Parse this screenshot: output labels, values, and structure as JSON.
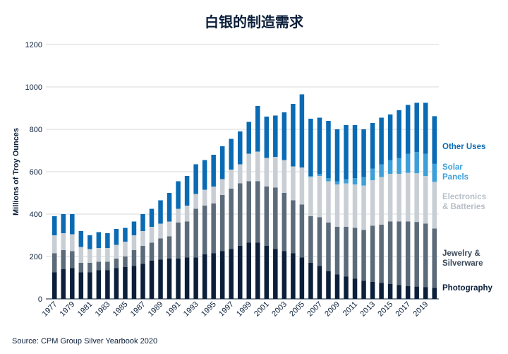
{
  "chart_data": {
    "type": "bar",
    "stacked": true,
    "title": "白银的制造需求",
    "ylabel": "Millions of Troy Ounces",
    "xlabel": "",
    "ylim": [
      0,
      1200
    ],
    "yticks": [
      "0",
      "200",
      "400",
      "600",
      "800",
      "1000",
      "1200"
    ],
    "grid": true,
    "legend_position": "right",
    "source": "Source: CPM Group Silver Yearbook 2020",
    "categories": [
      "1977",
      "1978",
      "1979",
      "1980",
      "1981",
      "1982",
      "1983",
      "1984",
      "1985",
      "1986",
      "1987",
      "1988",
      "1989",
      "1990",
      "1991",
      "1992",
      "1993",
      "1994",
      "1995",
      "1996",
      "1997",
      "1998",
      "1999",
      "2000",
      "2001",
      "2002",
      "2003",
      "2004",
      "2005",
      "2006",
      "2007",
      "2008",
      "2009",
      "2010",
      "2011",
      "2012",
      "2013",
      "2014",
      "2015",
      "2016",
      "2017",
      "2018",
      "2019",
      "2020"
    ],
    "xtick_labels": [
      "1977",
      "1979",
      "1981",
      "1983",
      "1985",
      "1987",
      "1989",
      "1991",
      "1993",
      "1995",
      "1997",
      "1999",
      "2001",
      "2003",
      "2005",
      "2007",
      "2009",
      "2011",
      "2013",
      "2015",
      "2017",
      "2019"
    ],
    "series": [
      {
        "name": "Photography",
        "color": "#0b1f3a",
        "values": [
          125,
          140,
          145,
          125,
          125,
          135,
          135,
          145,
          150,
          155,
          165,
          180,
          185,
          190,
          190,
          195,
          195,
          210,
          215,
          225,
          235,
          250,
          265,
          265,
          250,
          235,
          225,
          215,
          195,
          170,
          155,
          130,
          115,
          105,
          95,
          85,
          80,
          75,
          70,
          65,
          60,
          58,
          55,
          52
        ]
      },
      {
        "name": "Jewelry & Silverware",
        "color": "#5c6b7a",
        "values": [
          90,
          90,
          80,
          45,
          45,
          40,
          40,
          45,
          50,
          75,
          85,
          85,
          100,
          105,
          170,
          170,
          230,
          230,
          235,
          265,
          285,
          295,
          290,
          290,
          280,
          290,
          275,
          250,
          250,
          220,
          230,
          230,
          225,
          235,
          240,
          240,
          265,
          275,
          295,
          300,
          305,
          305,
          300,
          280
        ]
      },
      {
        "name": "Electronics & Batteries",
        "color": "#c8ced4",
        "values": [
          85,
          80,
          80,
          75,
          65,
          65,
          65,
          65,
          70,
          70,
          70,
          75,
          70,
          70,
          65,
          75,
          70,
          75,
          80,
          75,
          90,
          90,
          130,
          140,
          135,
          145,
          155,
          160,
          175,
          185,
          195,
          195,
          200,
          205,
          205,
          210,
          215,
          225,
          225,
          225,
          230,
          230,
          225,
          220
        ]
      },
      {
        "name": "Solar Panels",
        "color": "#3d9fd8",
        "values": [
          0,
          0,
          0,
          0,
          0,
          0,
          0,
          0,
          0,
          0,
          0,
          0,
          0,
          0,
          0,
          0,
          0,
          0,
          0,
          0,
          0,
          0,
          0,
          0,
          0,
          0,
          0,
          0,
          0,
          5,
          10,
          15,
          15,
          20,
          30,
          40,
          55,
          60,
          65,
          75,
          90,
          100,
          105,
          85
        ]
      },
      {
        "name": "Other Uses",
        "color": "#0a6bb4",
        "values": [
          90,
          90,
          95,
          75,
          65,
          75,
          70,
          75,
          65,
          65,
          80,
          85,
          110,
          135,
          130,
          140,
          140,
          140,
          150,
          155,
          145,
          155,
          150,
          215,
          195,
          195,
          225,
          295,
          345,
          270,
          265,
          270,
          245,
          255,
          250,
          225,
          215,
          220,
          215,
          225,
          230,
          232,
          240,
          225
        ]
      }
    ],
    "legend": [
      {
        "label_lines": [
          "Other Uses"
        ],
        "color": "#0a6bb4"
      },
      {
        "label_lines": [
          "Solar",
          "Panels"
        ],
        "color": "#3d9fd8"
      },
      {
        "label_lines": [
          "Electronics",
          "& Batteries"
        ],
        "color": "#b7bfc7"
      },
      {
        "label_lines": [
          "Jewelry &",
          "Silverware"
        ],
        "color": "#3d4a59"
      },
      {
        "label_lines": [
          "Photography"
        ],
        "color": "#0b1f3a"
      }
    ]
  }
}
